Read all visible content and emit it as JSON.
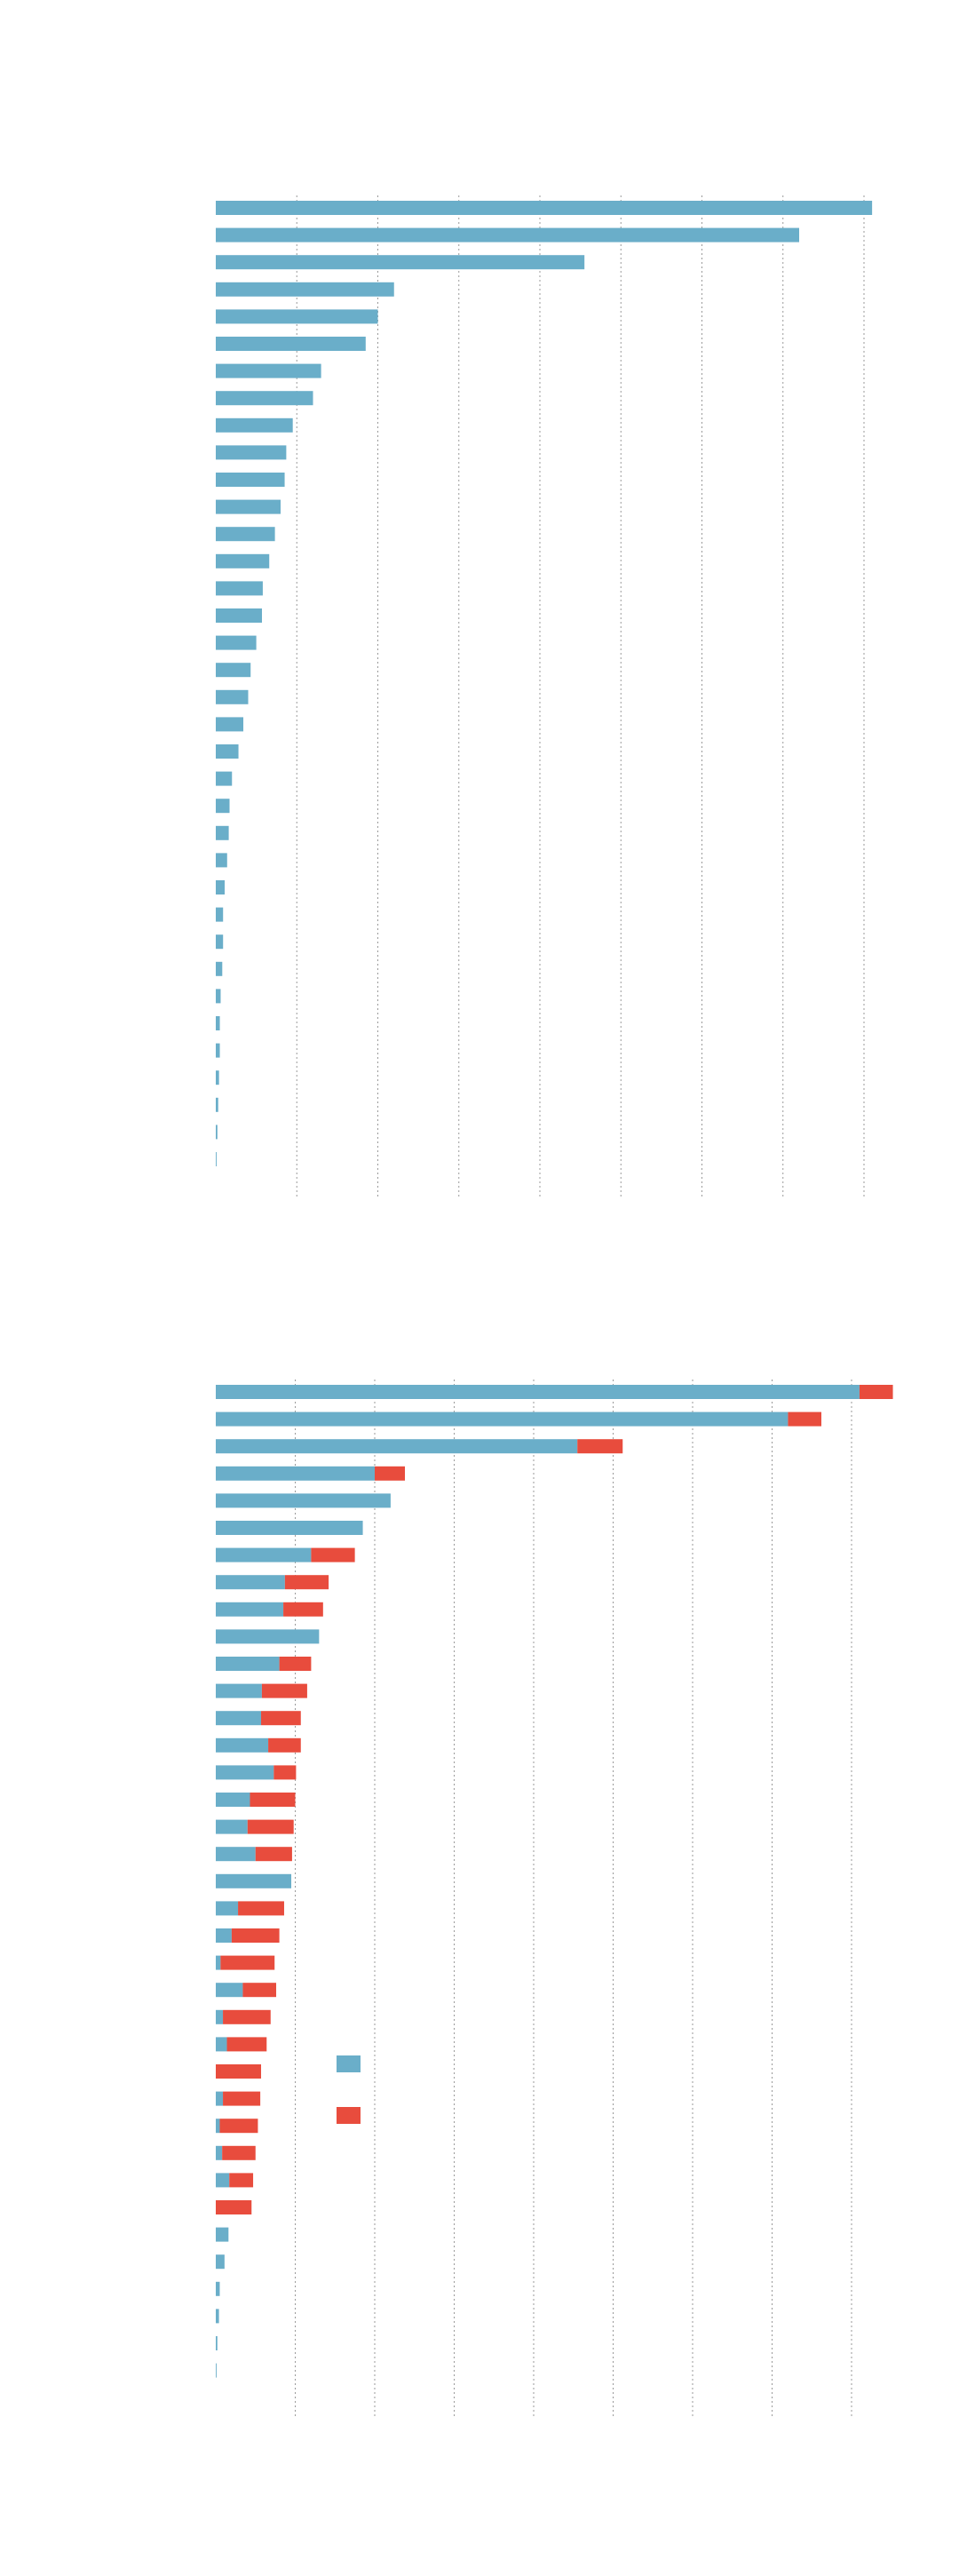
{
  "colors": {
    "series_a": "#6aaec9",
    "series_b": "#e84c3d",
    "grid": "#9a9a9a",
    "background": "#ffffff"
  },
  "chart_data": [
    {
      "type": "bar",
      "orientation": "horizontal",
      "title": "",
      "xlabel": "",
      "ylabel": "",
      "grid": true,
      "legend": "none",
      "xlim": [
        0,
        8.1
      ],
      "series": [
        {
          "values": [
            8.1,
            7.2,
            4.55,
            2.2,
            2.0,
            1.85,
            1.3,
            1.2,
            0.95,
            0.87,
            0.85,
            0.8,
            0.73,
            0.66,
            0.58,
            0.57,
            0.5,
            0.43,
            0.4,
            0.34,
            0.28,
            0.2,
            0.17,
            0.16,
            0.14,
            0.11,
            0.09,
            0.09,
            0.08,
            0.06,
            0.05,
            0.05,
            0.04,
            0.03,
            0.02,
            0.01
          ]
        }
      ]
    },
    {
      "type": "bar",
      "orientation": "horizontal",
      "stacked": true,
      "title": "",
      "xlabel": "",
      "ylabel": "",
      "grid": true,
      "legend": "center",
      "xlim": [
        0,
        8.5
      ],
      "series": [
        {
          "values": [
            8.1,
            7.2,
            4.55,
            2.0,
            2.2,
            1.85,
            1.2,
            0.87,
            0.85,
            1.3,
            0.8,
            0.58,
            0.57,
            0.66,
            0.73,
            0.43,
            0.4,
            0.5,
            0.95,
            0.28,
            0.2,
            0.06,
            0.34,
            0.09,
            0.14,
            0.0,
            0.09,
            0.05,
            0.08,
            0.17,
            0.0,
            0.16,
            0.11,
            0.05,
            0.04,
            0.02,
            0.01
          ]
        },
        {
          "values": [
            0.42,
            0.42,
            0.57,
            0.38,
            0.0,
            0.0,
            0.55,
            0.55,
            0.5,
            0.0,
            0.4,
            0.57,
            0.5,
            0.41,
            0.28,
            0.57,
            0.58,
            0.46,
            0.0,
            0.58,
            0.6,
            0.68,
            0.42,
            0.6,
            0.5,
            0.57,
            0.47,
            0.48,
            0.42,
            0.3,
            0.45,
            0.0,
            0.0,
            0.0,
            0.0,
            0.0,
            0.0
          ]
        }
      ]
    }
  ]
}
